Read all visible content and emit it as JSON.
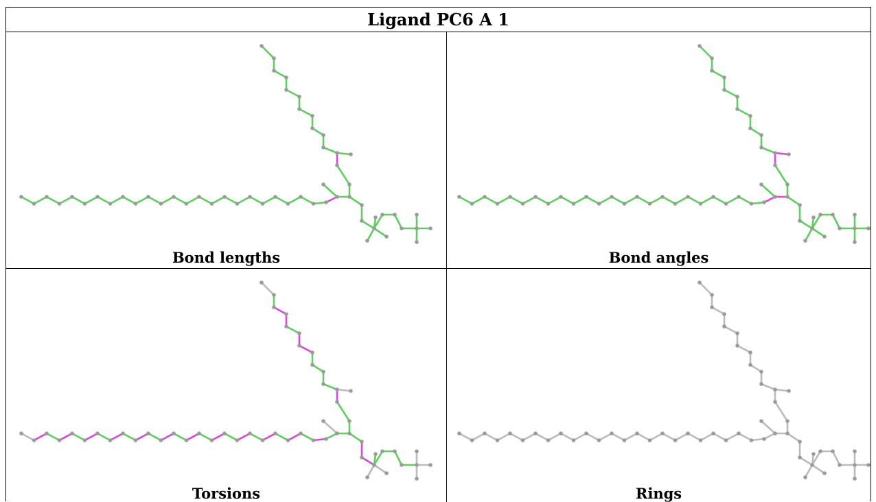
{
  "title": "Ligand PC6 A 1",
  "panels": [
    {
      "key": "bond_lengths",
      "caption": "Bond lengths"
    },
    {
      "key": "bond_angles",
      "caption": "Bond angles"
    },
    {
      "key": "torsions",
      "caption": "Torsions"
    },
    {
      "key": "rings",
      "caption": "Rings"
    }
  ],
  "colors": {
    "green": "#5ccf5c",
    "magenta": "#dd44dd",
    "gray": "#bbbbbb",
    "atom": "#9a9a9a"
  }
}
